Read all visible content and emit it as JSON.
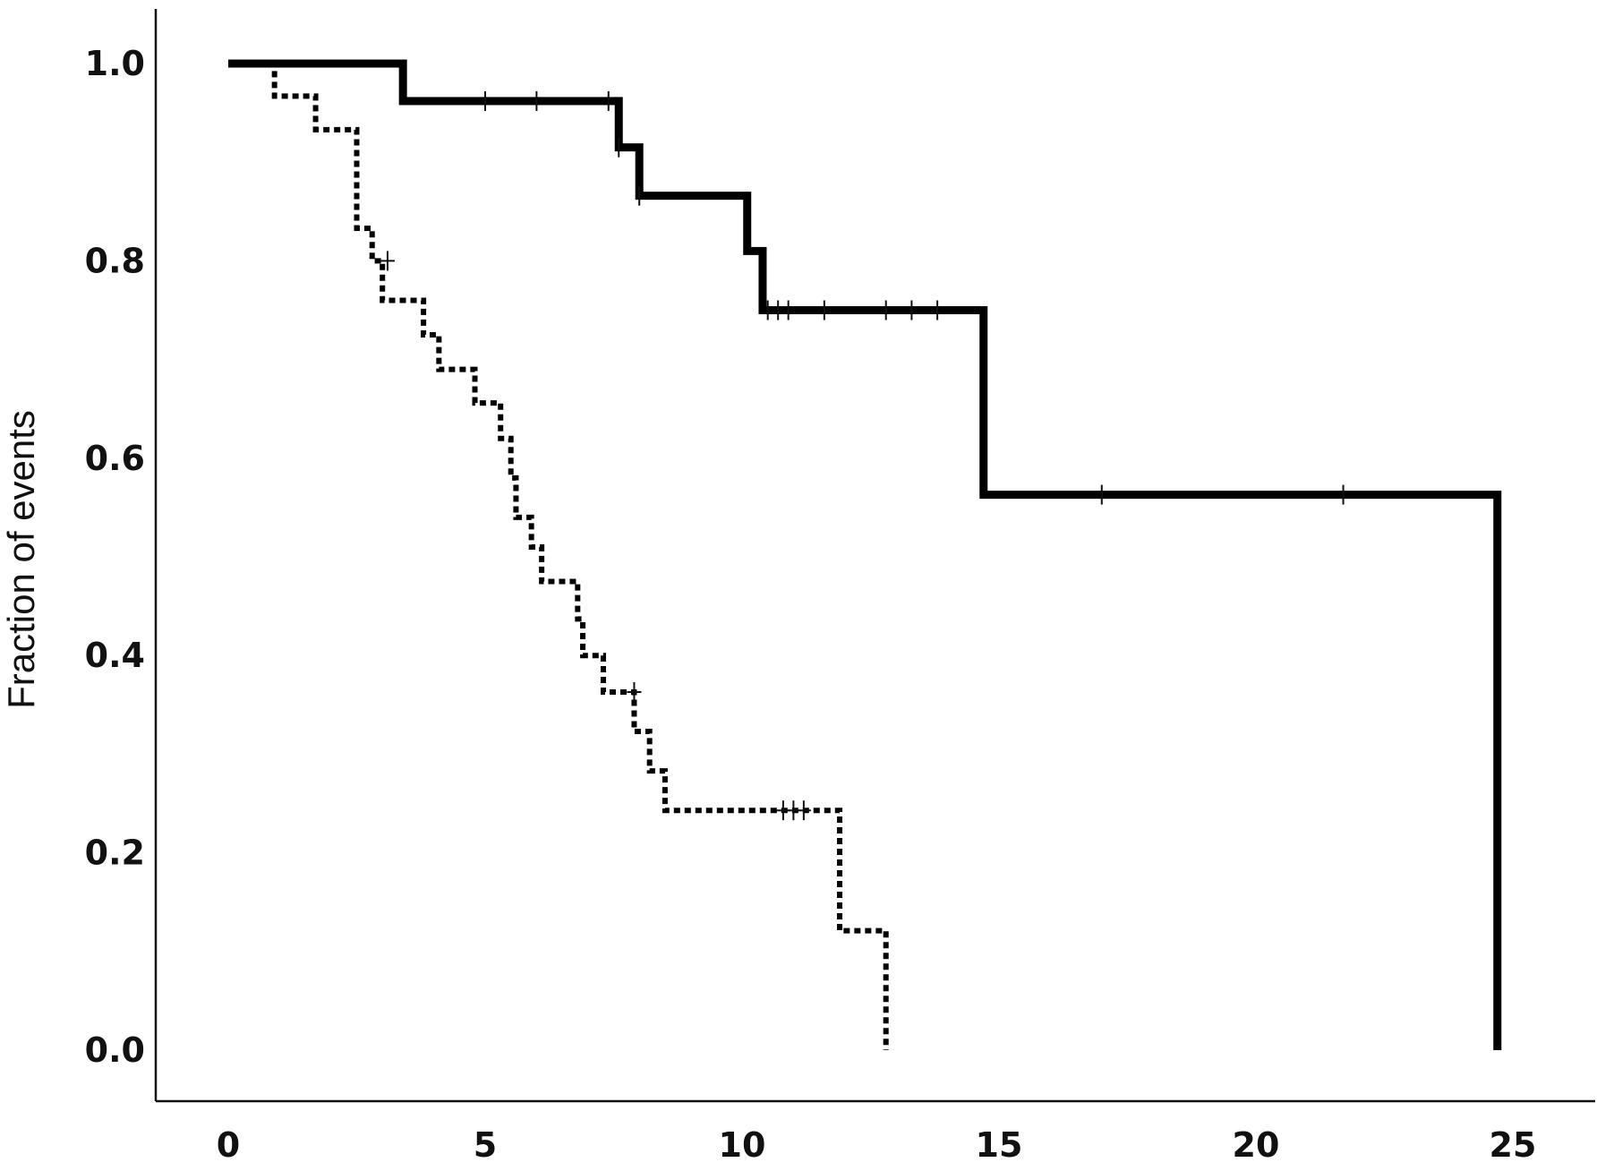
{
  "chart_data": {
    "type": "line",
    "subtype": "kaplan-meier-step",
    "title": "",
    "xlabel": "",
    "ylabel": "Fraction of events",
    "xlim": [
      0,
      25
    ],
    "ylim": [
      0,
      1
    ],
    "x_ticks": [
      "0",
      "5",
      "10",
      "15",
      "20",
      "25"
    ],
    "y_ticks": [
      "0.0",
      "0.2",
      "0.4",
      "0.6",
      "0.8",
      "1.0"
    ],
    "grid": false,
    "legend": "none",
    "series": [
      {
        "line_style": "solid",
        "color": "#000000",
        "steps": [
          [
            0,
            1.0
          ],
          [
            3.4,
            0.962
          ],
          [
            7.6,
            0.915
          ],
          [
            8.0,
            0.866
          ],
          [
            10.1,
            0.81
          ],
          [
            10.4,
            0.75
          ],
          [
            14.7,
            0.563
          ],
          [
            24.7,
            0.0
          ]
        ],
        "censored": [
          [
            5.0,
            0.962
          ],
          [
            6.0,
            0.962
          ],
          [
            7.4,
            0.962
          ],
          [
            7.6,
            0.915
          ],
          [
            8.0,
            0.866
          ],
          [
            10.5,
            0.75
          ],
          [
            10.7,
            0.75
          ],
          [
            10.9,
            0.75
          ],
          [
            11.6,
            0.75
          ],
          [
            12.8,
            0.75
          ],
          [
            13.3,
            0.75
          ],
          [
            13.8,
            0.75
          ],
          [
            17.0,
            0.563
          ],
          [
            21.7,
            0.563
          ]
        ]
      },
      {
        "line_style": "dotted",
        "color": "#000000",
        "steps": [
          [
            0,
            1.0
          ],
          [
            0.9,
            0.967
          ],
          [
            1.7,
            0.933
          ],
          [
            2.5,
            0.833
          ],
          [
            2.8,
            0.8
          ],
          [
            3.0,
            0.76
          ],
          [
            3.8,
            0.725
          ],
          [
            4.1,
            0.69
          ],
          [
            4.8,
            0.656
          ],
          [
            5.3,
            0.62
          ],
          [
            5.5,
            0.58
          ],
          [
            5.6,
            0.54
          ],
          [
            5.9,
            0.51
          ],
          [
            6.1,
            0.475
          ],
          [
            6.8,
            0.437
          ],
          [
            6.9,
            0.4
          ],
          [
            7.3,
            0.363
          ],
          [
            7.9,
            0.323
          ],
          [
            8.2,
            0.283
          ],
          [
            8.5,
            0.243
          ],
          [
            11.9,
            0.121
          ],
          [
            12.8,
            0.0
          ]
        ],
        "censored": [
          [
            3.1,
            0.8
          ],
          [
            7.9,
            0.363
          ],
          [
            10.8,
            0.243
          ],
          [
            11.0,
            0.243
          ],
          [
            11.2,
            0.243
          ]
        ]
      }
    ]
  }
}
